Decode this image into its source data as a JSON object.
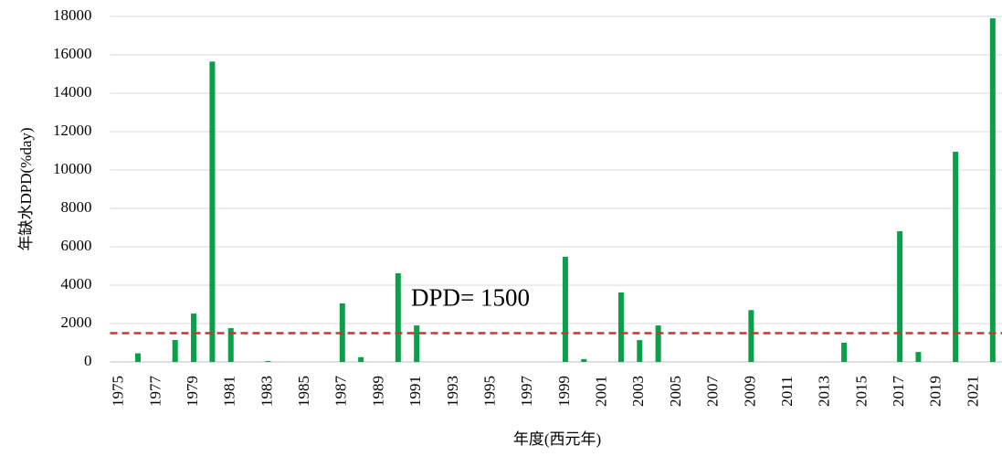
{
  "chart_data": {
    "type": "bar",
    "y_label": "年缺水DPD(%day)",
    "x_label": "年度(西元年)",
    "categories": [
      "1975",
      null,
      "1977",
      null,
      "1979",
      null,
      "1981",
      null,
      "1983",
      null,
      "1985",
      null,
      "1987",
      null,
      "1989",
      null,
      "1991",
      null,
      "1993",
      null,
      "1995",
      null,
      "1997",
      null,
      "1999",
      null,
      "2001",
      null,
      "2003",
      null,
      "2005",
      null,
      "2007",
      null,
      "2009",
      null,
      "2011",
      null,
      "2013",
      null,
      "2015",
      null,
      "2017",
      null,
      "2019",
      null,
      "2021",
      null
    ],
    "values": [
      0,
      450,
      0,
      1140,
      2520,
      15650,
      1760,
      0,
      50,
      0,
      0,
      0,
      3050,
      250,
      0,
      4620,
      1900,
      0,
      0,
      0,
      0,
      0,
      0,
      0,
      5480,
      150,
      0,
      3620,
      1140,
      1900,
      0,
      0,
      0,
      0,
      2700,
      0,
      0,
      0,
      0,
      1000,
      0,
      0,
      6810,
      520,
      0,
      10950,
      0,
      17900
    ],
    "color": "#0aa04a",
    "ylim": [
      0,
      18000
    ],
    "yticks": [
      0,
      2000,
      4000,
      6000,
      8000,
      10000,
      12000,
      14000,
      16000,
      18000
    ],
    "grid": true,
    "reference_line": {
      "value": 1500,
      "label": "DPD= 1500",
      "color": "#c8372d",
      "label_color": "#e0632c"
    }
  }
}
